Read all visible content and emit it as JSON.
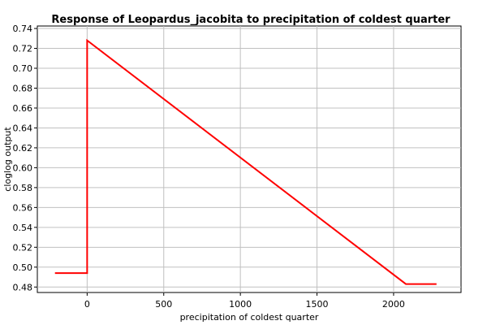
{
  "chart_data": {
    "type": "line",
    "title": "Response of Leopardus_jacobita to precipitation of coldest quarter",
    "xlabel": "precipitation of coldest quarter",
    "ylabel": "cloglog output",
    "xlim": [
      -325,
      2440
    ],
    "ylim": [
      0.4745,
      0.7425
    ],
    "x_ticks": [
      0,
      500,
      1000,
      1500,
      2000
    ],
    "x_tick_labels": [
      "0",
      "500",
      "1000",
      "1500",
      "2000"
    ],
    "y_ticks": [
      0.48,
      0.5,
      0.52,
      0.54,
      0.56,
      0.58,
      0.6,
      0.62,
      0.64,
      0.66,
      0.68,
      0.7,
      0.72,
      0.74
    ],
    "y_tick_labels": [
      "0.48",
      "0.50",
      "0.52",
      "0.54",
      "0.56",
      "0.58",
      "0.60",
      "0.62",
      "0.64",
      "0.66",
      "0.68",
      "0.70",
      "0.72",
      "0.74"
    ],
    "grid": true,
    "series": [
      {
        "color": "#ff0000",
        "points": [
          [
            -210,
            0.494
          ],
          [
            0,
            0.494
          ],
          [
            0,
            0.728
          ],
          [
            2080,
            0.483
          ],
          [
            2280,
            0.483
          ]
        ]
      }
    ]
  }
}
